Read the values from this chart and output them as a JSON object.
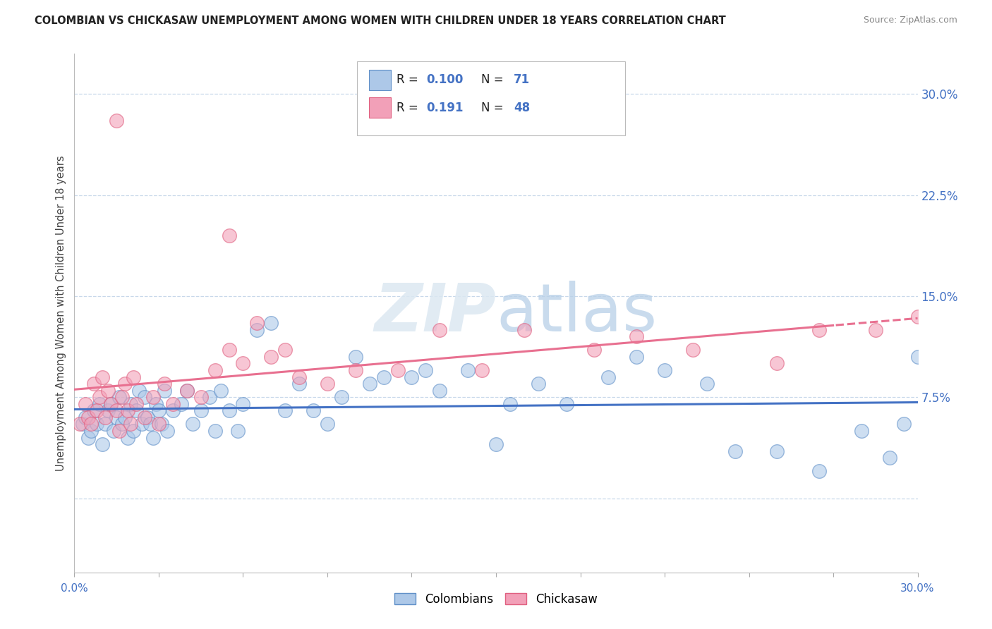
{
  "title": "COLOMBIAN VS CHICKASAW UNEMPLOYMENT AMONG WOMEN WITH CHILDREN UNDER 18 YEARS CORRELATION CHART",
  "source": "Source: ZipAtlas.com",
  "ylabel": "Unemployment Among Women with Children Under 18 years",
  "xmin": 0.0,
  "xmax": 30.0,
  "ymin": -5.5,
  "ymax": 33.0,
  "yticks": [
    0.0,
    7.5,
    15.0,
    22.5,
    30.0
  ],
  "ytick_labels": [
    "",
    "7.5%",
    "15.0%",
    "22.5%",
    "30.0%"
  ],
  "label1": "Colombians",
  "label2": "Chickasaw",
  "color1": "#adc8e8",
  "color2": "#f2a0b8",
  "edge_color1": "#6090c8",
  "edge_color2": "#e06080",
  "line_color_blue": "#4472c4",
  "line_color_pink": "#e87090",
  "tick_label_color": "#4472c4",
  "watermark": "ZIPatlas",
  "background_color": "#ffffff",
  "grid_color": "#c8d8ea",
  "colombians_x": [
    0.3,
    0.4,
    0.5,
    0.6,
    0.7,
    0.8,
    0.9,
    1.0,
    1.1,
    1.2,
    1.3,
    1.4,
    1.5,
    1.6,
    1.7,
    1.8,
    1.9,
    2.0,
    2.1,
    2.2,
    2.3,
    2.4,
    2.5,
    2.6,
    2.7,
    2.8,
    2.9,
    3.0,
    3.1,
    3.2,
    3.3,
    3.5,
    3.8,
    4.0,
    4.2,
    4.5,
    4.8,
    5.0,
    5.2,
    5.5,
    5.8,
    6.0,
    6.5,
    7.0,
    7.5,
    8.0,
    8.5,
    9.0,
    9.5,
    10.0,
    10.5,
    11.0,
    12.0,
    12.5,
    13.0,
    14.0,
    15.0,
    15.5,
    16.5,
    17.5,
    19.0,
    20.0,
    21.0,
    22.5,
    23.5,
    25.0,
    26.5,
    28.0,
    29.0,
    29.5,
    30.0
  ],
  "colombians_y": [
    5.5,
    6.0,
    4.5,
    5.0,
    6.5,
    5.5,
    7.0,
    4.0,
    5.5,
    6.5,
    7.0,
    5.0,
    6.0,
    7.5,
    5.5,
    6.0,
    4.5,
    7.0,
    5.0,
    6.5,
    8.0,
    5.5,
    7.5,
    6.0,
    5.5,
    4.5,
    7.0,
    6.5,
    5.5,
    8.0,
    5.0,
    6.5,
    7.0,
    8.0,
    5.5,
    6.5,
    7.5,
    5.0,
    8.0,
    6.5,
    5.0,
    7.0,
    12.5,
    13.0,
    6.5,
    8.5,
    6.5,
    5.5,
    7.5,
    10.5,
    8.5,
    9.0,
    9.0,
    9.5,
    8.0,
    9.5,
    4.0,
    7.0,
    8.5,
    7.0,
    9.0,
    10.5,
    9.5,
    8.5,
    3.5,
    3.5,
    2.0,
    5.0,
    3.0,
    5.5,
    10.5
  ],
  "chickasaw_x": [
    0.2,
    0.4,
    0.5,
    0.6,
    0.7,
    0.8,
    0.9,
    1.0,
    1.1,
    1.2,
    1.3,
    1.5,
    1.6,
    1.7,
    1.8,
    1.9,
    2.0,
    2.1,
    2.2,
    2.5,
    2.8,
    3.0,
    3.2,
    3.5,
    4.0,
    4.5,
    5.0,
    5.5,
    6.0,
    6.5,
    7.0,
    7.5,
    8.0,
    9.0,
    10.0,
    11.5,
    13.0,
    14.5,
    16.0,
    18.5,
    20.0,
    22.0,
    25.0,
    26.5,
    28.5,
    30.0,
    1.5,
    5.5
  ],
  "chickasaw_y": [
    5.5,
    7.0,
    6.0,
    5.5,
    8.5,
    6.5,
    7.5,
    9.0,
    6.0,
    8.0,
    7.0,
    6.5,
    5.0,
    7.5,
    8.5,
    6.5,
    5.5,
    9.0,
    7.0,
    6.0,
    7.5,
    5.5,
    8.5,
    7.0,
    8.0,
    7.5,
    9.5,
    11.0,
    10.0,
    13.0,
    10.5,
    11.0,
    9.0,
    8.5,
    9.5,
    9.5,
    12.5,
    9.5,
    12.5,
    11.0,
    12.0,
    11.0,
    10.0,
    12.5,
    12.5,
    13.5,
    28.0,
    19.5
  ]
}
